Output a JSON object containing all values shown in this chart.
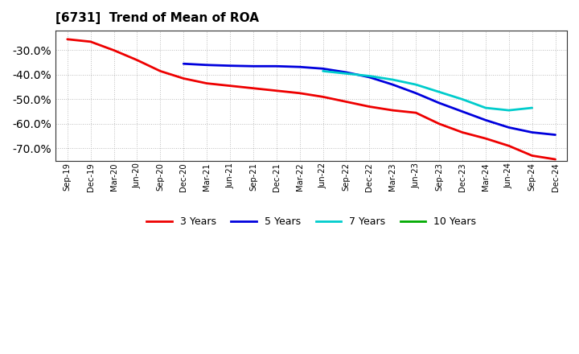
{
  "title": "[6731]  Trend of Mean of ROA",
  "title_fontsize": 11,
  "background_color": "#ffffff",
  "grid_color": "#bbbbbb",
  "ylim": [
    -75,
    -22
  ],
  "yticks": [
    -30,
    -40,
    -50,
    -60,
    -70
  ],
  "x_labels": [
    "Sep-19",
    "Dec-19",
    "Mar-20",
    "Jun-20",
    "Sep-20",
    "Dec-20",
    "Mar-21",
    "Jun-21",
    "Sep-21",
    "Dec-21",
    "Mar-22",
    "Jun-22",
    "Sep-22",
    "Dec-22",
    "Mar-23",
    "Jun-23",
    "Sep-23",
    "Dec-23",
    "Mar-24",
    "Jun-24",
    "Sep-24",
    "Dec-24"
  ],
  "series": {
    "3 Years": {
      "color": "#ee0000",
      "x_indices": [
        0,
        1,
        2,
        3,
        4,
        5,
        6,
        7,
        8,
        9,
        10,
        11,
        12,
        13,
        14,
        15,
        16,
        17,
        18,
        19,
        20,
        21
      ],
      "data": [
        -25.5,
        -26.5,
        -30.0,
        -34.0,
        -38.5,
        -41.5,
        -43.5,
        -44.5,
        -45.5,
        -46.5,
        -47.5,
        -49.0,
        -51.0,
        -53.0,
        -54.5,
        -55.5,
        -60.0,
        -63.5,
        -66.0,
        -69.0,
        -73.0,
        -74.5
      ]
    },
    "5 Years": {
      "color": "#0000dd",
      "x_indices": [
        5,
        6,
        7,
        8,
        9,
        10,
        11,
        12,
        13,
        14,
        15,
        16,
        17,
        18,
        19,
        20,
        21
      ],
      "data": [
        -35.5,
        -36.0,
        -36.3,
        -36.5,
        -36.5,
        -36.8,
        -37.5,
        -39.0,
        -41.0,
        -44.0,
        -47.5,
        -51.5,
        -55.0,
        -58.5,
        -61.5,
        -63.5,
        -64.5
      ]
    },
    "7 Years": {
      "color": "#00cccc",
      "x_indices": [
        11,
        12,
        13,
        14,
        15,
        16,
        17,
        18,
        19,
        20
      ],
      "data": [
        -38.5,
        -39.5,
        -40.5,
        -42.0,
        -44.0,
        -47.0,
        -50.0,
        -53.5,
        -54.5,
        -53.5
      ]
    },
    "10 Years": {
      "color": "#00aa00",
      "x_indices": [],
      "data": []
    }
  }
}
